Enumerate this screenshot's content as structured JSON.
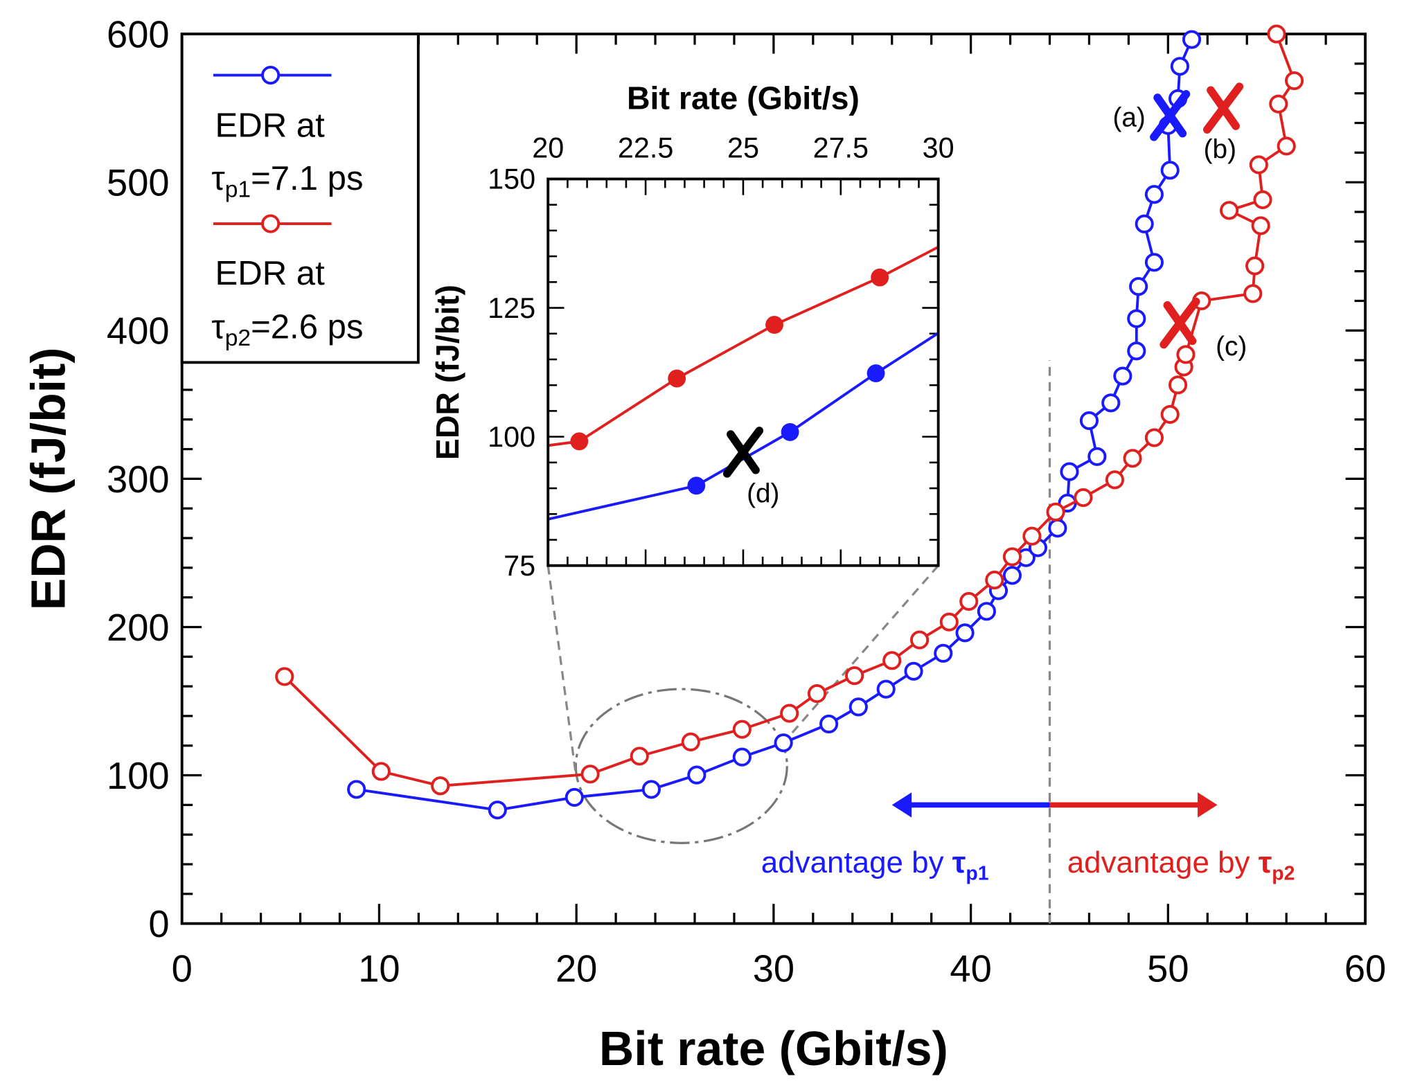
{
  "chart_data": {
    "type": "line",
    "title": "",
    "xlabel": "Bit rate (Gbit/s)",
    "ylabel": "EDR (fJ/bit)",
    "xlim": [
      0,
      60
    ],
    "ylim": [
      0,
      600
    ],
    "xticks": [
      0,
      10,
      20,
      30,
      40,
      50,
      60
    ],
    "yticks": [
      0,
      100,
      200,
      300,
      400,
      500,
      600
    ],
    "grid": false,
    "legend_position": "top-left",
    "series": [
      {
        "name": "EDR at τp1=7.1 ps",
        "color": "#1a1aff",
        "legend": {
          "line1": "EDR at",
          "tau": "τ",
          "sub": "p1",
          "rest": "=7.1 ps"
        },
        "x": [
          8.85,
          16.0,
          19.9,
          23.8,
          26.1,
          28.4,
          30.5,
          32.8,
          34.3,
          35.7,
          37.1,
          38.6,
          39.7,
          40.8,
          41.4,
          42.1,
          42.8,
          43.4,
          44.4,
          44.9,
          45.0,
          46.4,
          46.0,
          47.1,
          47.7,
          48.4,
          48.4,
          48.5,
          49.3,
          48.8,
          49.3,
          50.1,
          50.0,
          50.5,
          50.6,
          51.2
        ],
        "y": [
          90.5,
          76.6,
          85.1,
          90.5,
          100.2,
          112.3,
          121.9,
          134.6,
          146.1,
          158.1,
          170.2,
          182.3,
          196.1,
          210.6,
          224.5,
          234.8,
          246.8,
          253.5,
          266.7,
          283.6,
          304.8,
          315.0,
          339.2,
          351.2,
          369.3,
          386.2,
          408.0,
          429.7,
          446.0,
          471.9,
          491.8,
          508.1,
          538.3,
          556.4,
          578.2,
          596.3
        ]
      },
      {
        "name": "EDR at τp2=2.6 ps",
        "color": "#e0201e",
        "legend": {
          "line1": "EDR at",
          "tau": "τ",
          "sub": "p2",
          "rest": "=2.6 ps"
        },
        "x": [
          5.2,
          10.1,
          13.1,
          20.7,
          23.2,
          25.8,
          28.4,
          30.8,
          32.2,
          34.1,
          36.0,
          37.4,
          38.9,
          39.9,
          41.2,
          42.1,
          43.1,
          44.3,
          45.7,
          47.3,
          48.2,
          49.3,
          50.1,
          50.5,
          50.8,
          50.9,
          51.7,
          54.3,
          54.4,
          54.7,
          53.1,
          54.8,
          54.6,
          56.0,
          55.6,
          56.4,
          55.5
        ],
        "y": [
          166.6,
          102.6,
          92.9,
          100.8,
          112.9,
          122.5,
          131.0,
          141.8,
          155.1,
          167.2,
          177.4,
          191.3,
          203.4,
          217.3,
          231.7,
          247.4,
          261.3,
          277.6,
          287.3,
          299.3,
          313.8,
          327.7,
          343.4,
          363.3,
          375.4,
          383.8,
          420.0,
          424.9,
          443.6,
          470.7,
          481.0,
          488.2,
          511.8,
          524.4,
          552.8,
          568.5,
          600
        ]
      }
    ],
    "inset": {
      "xlabel": "Bit rate (Gbit/s)",
      "ylabel": "EDR (fJ/bit)",
      "xlim": [
        20,
        30
      ],
      "ylim": [
        75,
        150
      ],
      "xticks": [
        "20",
        "22.5",
        "25",
        "27.5",
        "30"
      ],
      "yticks": [
        "75",
        "100",
        "125",
        "150"
      ],
      "series": [
        {
          "name": "τp2",
          "color": "#e0201e",
          "line_x": [
            20,
            20.8,
            23.3,
            25.8,
            28.5,
            30
          ],
          "line_y": [
            98.3,
            99.1,
            111.3,
            121.7,
            130.9,
            136.8
          ],
          "points_x": [
            20.8,
            23.3,
            25.8,
            28.5
          ],
          "points_y": [
            99.1,
            111.3,
            121.7,
            130.9
          ]
        },
        {
          "name": "τp1",
          "color": "#1a1aff",
          "line_x": [
            20,
            23.8,
            26.2,
            28.4,
            30
          ],
          "line_y": [
            84.0,
            90.5,
            100.9,
            112.3,
            120.1
          ],
          "points_x": [
            23.8,
            26.2,
            28.4
          ],
          "points_y": [
            90.5,
            100.9,
            112.3
          ]
        }
      ],
      "marker_d": {
        "label": "(d)",
        "x": 25.0,
        "y": 97,
        "color": "#000000"
      }
    },
    "annotations": [
      {
        "label": "(a)",
        "x": 50.1,
        "y": 545,
        "color": "#1a1aff"
      },
      {
        "label": "(b)",
        "x": 52.8,
        "y": 550,
        "color": "#e0201e"
      },
      {
        "label": "(c)",
        "x": 50.6,
        "y": 405,
        "color": "#e0201e"
      }
    ],
    "threshold_x": 44,
    "advantage_left": {
      "text": "advantage by ",
      "tau": "τ",
      "sub": "p1",
      "color": "#1a1aff",
      "from": 44,
      "to": 36
    },
    "advantage_right": {
      "text": "advantage by ",
      "tau": "τ",
      "sub": "p2",
      "color": "#e0201e",
      "from": 44,
      "to": 52.5
    }
  }
}
